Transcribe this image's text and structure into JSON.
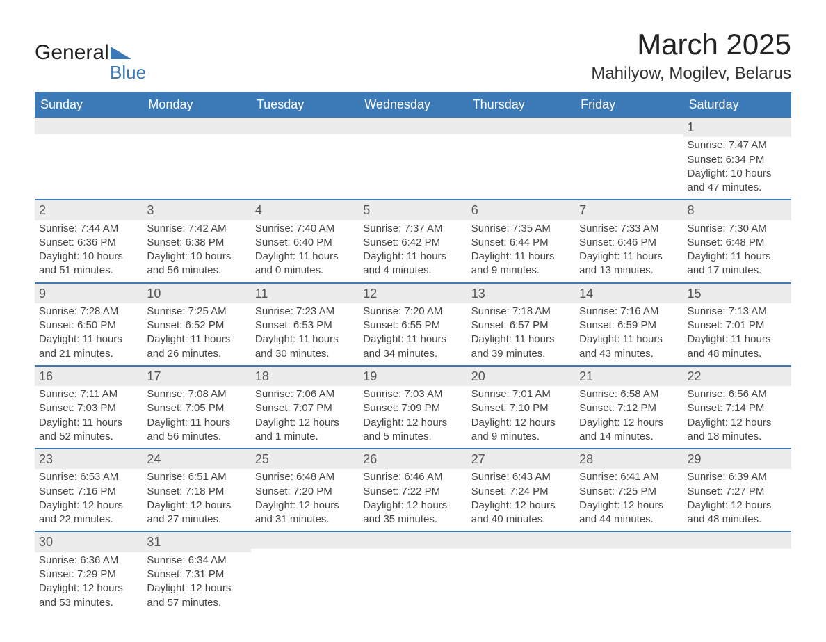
{
  "logo": {
    "word1": "General",
    "word2": "Blue",
    "triangle_color": "#3b79b7"
  },
  "title": "March 2025",
  "location": "Mahilyow, Mogilev, Belarus",
  "colors": {
    "header_bg": "#3b79b7",
    "header_text": "#ffffff",
    "border": "#3b79b7",
    "daynum_bg": "#ececec",
    "body_text": "#444444",
    "page_bg": "#ffffff"
  },
  "typography": {
    "title_fontsize": 42,
    "location_fontsize": 24,
    "weekday_fontsize": 18,
    "daynum_fontsize": 18,
    "cell_fontsize": 15
  },
  "weekdays": [
    "Sunday",
    "Monday",
    "Tuesday",
    "Wednesday",
    "Thursday",
    "Friday",
    "Saturday"
  ],
  "labels": {
    "sunrise": "Sunrise:",
    "sunset": "Sunset:",
    "daylight": "Daylight:"
  },
  "weeks": [
    [
      null,
      null,
      null,
      null,
      null,
      null,
      {
        "d": "1",
        "sr": "7:47 AM",
        "ss": "6:34 PM",
        "dl": "10 hours and 47 minutes."
      }
    ],
    [
      {
        "d": "2",
        "sr": "7:44 AM",
        "ss": "6:36 PM",
        "dl": "10 hours and 51 minutes."
      },
      {
        "d": "3",
        "sr": "7:42 AM",
        "ss": "6:38 PM",
        "dl": "10 hours and 56 minutes."
      },
      {
        "d": "4",
        "sr": "7:40 AM",
        "ss": "6:40 PM",
        "dl": "11 hours and 0 minutes."
      },
      {
        "d": "5",
        "sr": "7:37 AM",
        "ss": "6:42 PM",
        "dl": "11 hours and 4 minutes."
      },
      {
        "d": "6",
        "sr": "7:35 AM",
        "ss": "6:44 PM",
        "dl": "11 hours and 9 minutes."
      },
      {
        "d": "7",
        "sr": "7:33 AM",
        "ss": "6:46 PM",
        "dl": "11 hours and 13 minutes."
      },
      {
        "d": "8",
        "sr": "7:30 AM",
        "ss": "6:48 PM",
        "dl": "11 hours and 17 minutes."
      }
    ],
    [
      {
        "d": "9",
        "sr": "7:28 AM",
        "ss": "6:50 PM",
        "dl": "11 hours and 21 minutes."
      },
      {
        "d": "10",
        "sr": "7:25 AM",
        "ss": "6:52 PM",
        "dl": "11 hours and 26 minutes."
      },
      {
        "d": "11",
        "sr": "7:23 AM",
        "ss": "6:53 PM",
        "dl": "11 hours and 30 minutes."
      },
      {
        "d": "12",
        "sr": "7:20 AM",
        "ss": "6:55 PM",
        "dl": "11 hours and 34 minutes."
      },
      {
        "d": "13",
        "sr": "7:18 AM",
        "ss": "6:57 PM",
        "dl": "11 hours and 39 minutes."
      },
      {
        "d": "14",
        "sr": "7:16 AM",
        "ss": "6:59 PM",
        "dl": "11 hours and 43 minutes."
      },
      {
        "d": "15",
        "sr": "7:13 AM",
        "ss": "7:01 PM",
        "dl": "11 hours and 48 minutes."
      }
    ],
    [
      {
        "d": "16",
        "sr": "7:11 AM",
        "ss": "7:03 PM",
        "dl": "11 hours and 52 minutes."
      },
      {
        "d": "17",
        "sr": "7:08 AM",
        "ss": "7:05 PM",
        "dl": "11 hours and 56 minutes."
      },
      {
        "d": "18",
        "sr": "7:06 AM",
        "ss": "7:07 PM",
        "dl": "12 hours and 1 minute."
      },
      {
        "d": "19",
        "sr": "7:03 AM",
        "ss": "7:09 PM",
        "dl": "12 hours and 5 minutes."
      },
      {
        "d": "20",
        "sr": "7:01 AM",
        "ss": "7:10 PM",
        "dl": "12 hours and 9 minutes."
      },
      {
        "d": "21",
        "sr": "6:58 AM",
        "ss": "7:12 PM",
        "dl": "12 hours and 14 minutes."
      },
      {
        "d": "22",
        "sr": "6:56 AM",
        "ss": "7:14 PM",
        "dl": "12 hours and 18 minutes."
      }
    ],
    [
      {
        "d": "23",
        "sr": "6:53 AM",
        "ss": "7:16 PM",
        "dl": "12 hours and 22 minutes."
      },
      {
        "d": "24",
        "sr": "6:51 AM",
        "ss": "7:18 PM",
        "dl": "12 hours and 27 minutes."
      },
      {
        "d": "25",
        "sr": "6:48 AM",
        "ss": "7:20 PM",
        "dl": "12 hours and 31 minutes."
      },
      {
        "d": "26",
        "sr": "6:46 AM",
        "ss": "7:22 PM",
        "dl": "12 hours and 35 minutes."
      },
      {
        "d": "27",
        "sr": "6:43 AM",
        "ss": "7:24 PM",
        "dl": "12 hours and 40 minutes."
      },
      {
        "d": "28",
        "sr": "6:41 AM",
        "ss": "7:25 PM",
        "dl": "12 hours and 44 minutes."
      },
      {
        "d": "29",
        "sr": "6:39 AM",
        "ss": "7:27 PM",
        "dl": "12 hours and 48 minutes."
      }
    ],
    [
      {
        "d": "30",
        "sr": "6:36 AM",
        "ss": "7:29 PM",
        "dl": "12 hours and 53 minutes."
      },
      {
        "d": "31",
        "sr": "6:34 AM",
        "ss": "7:31 PM",
        "dl": "12 hours and 57 minutes."
      },
      null,
      null,
      null,
      null,
      null
    ]
  ]
}
